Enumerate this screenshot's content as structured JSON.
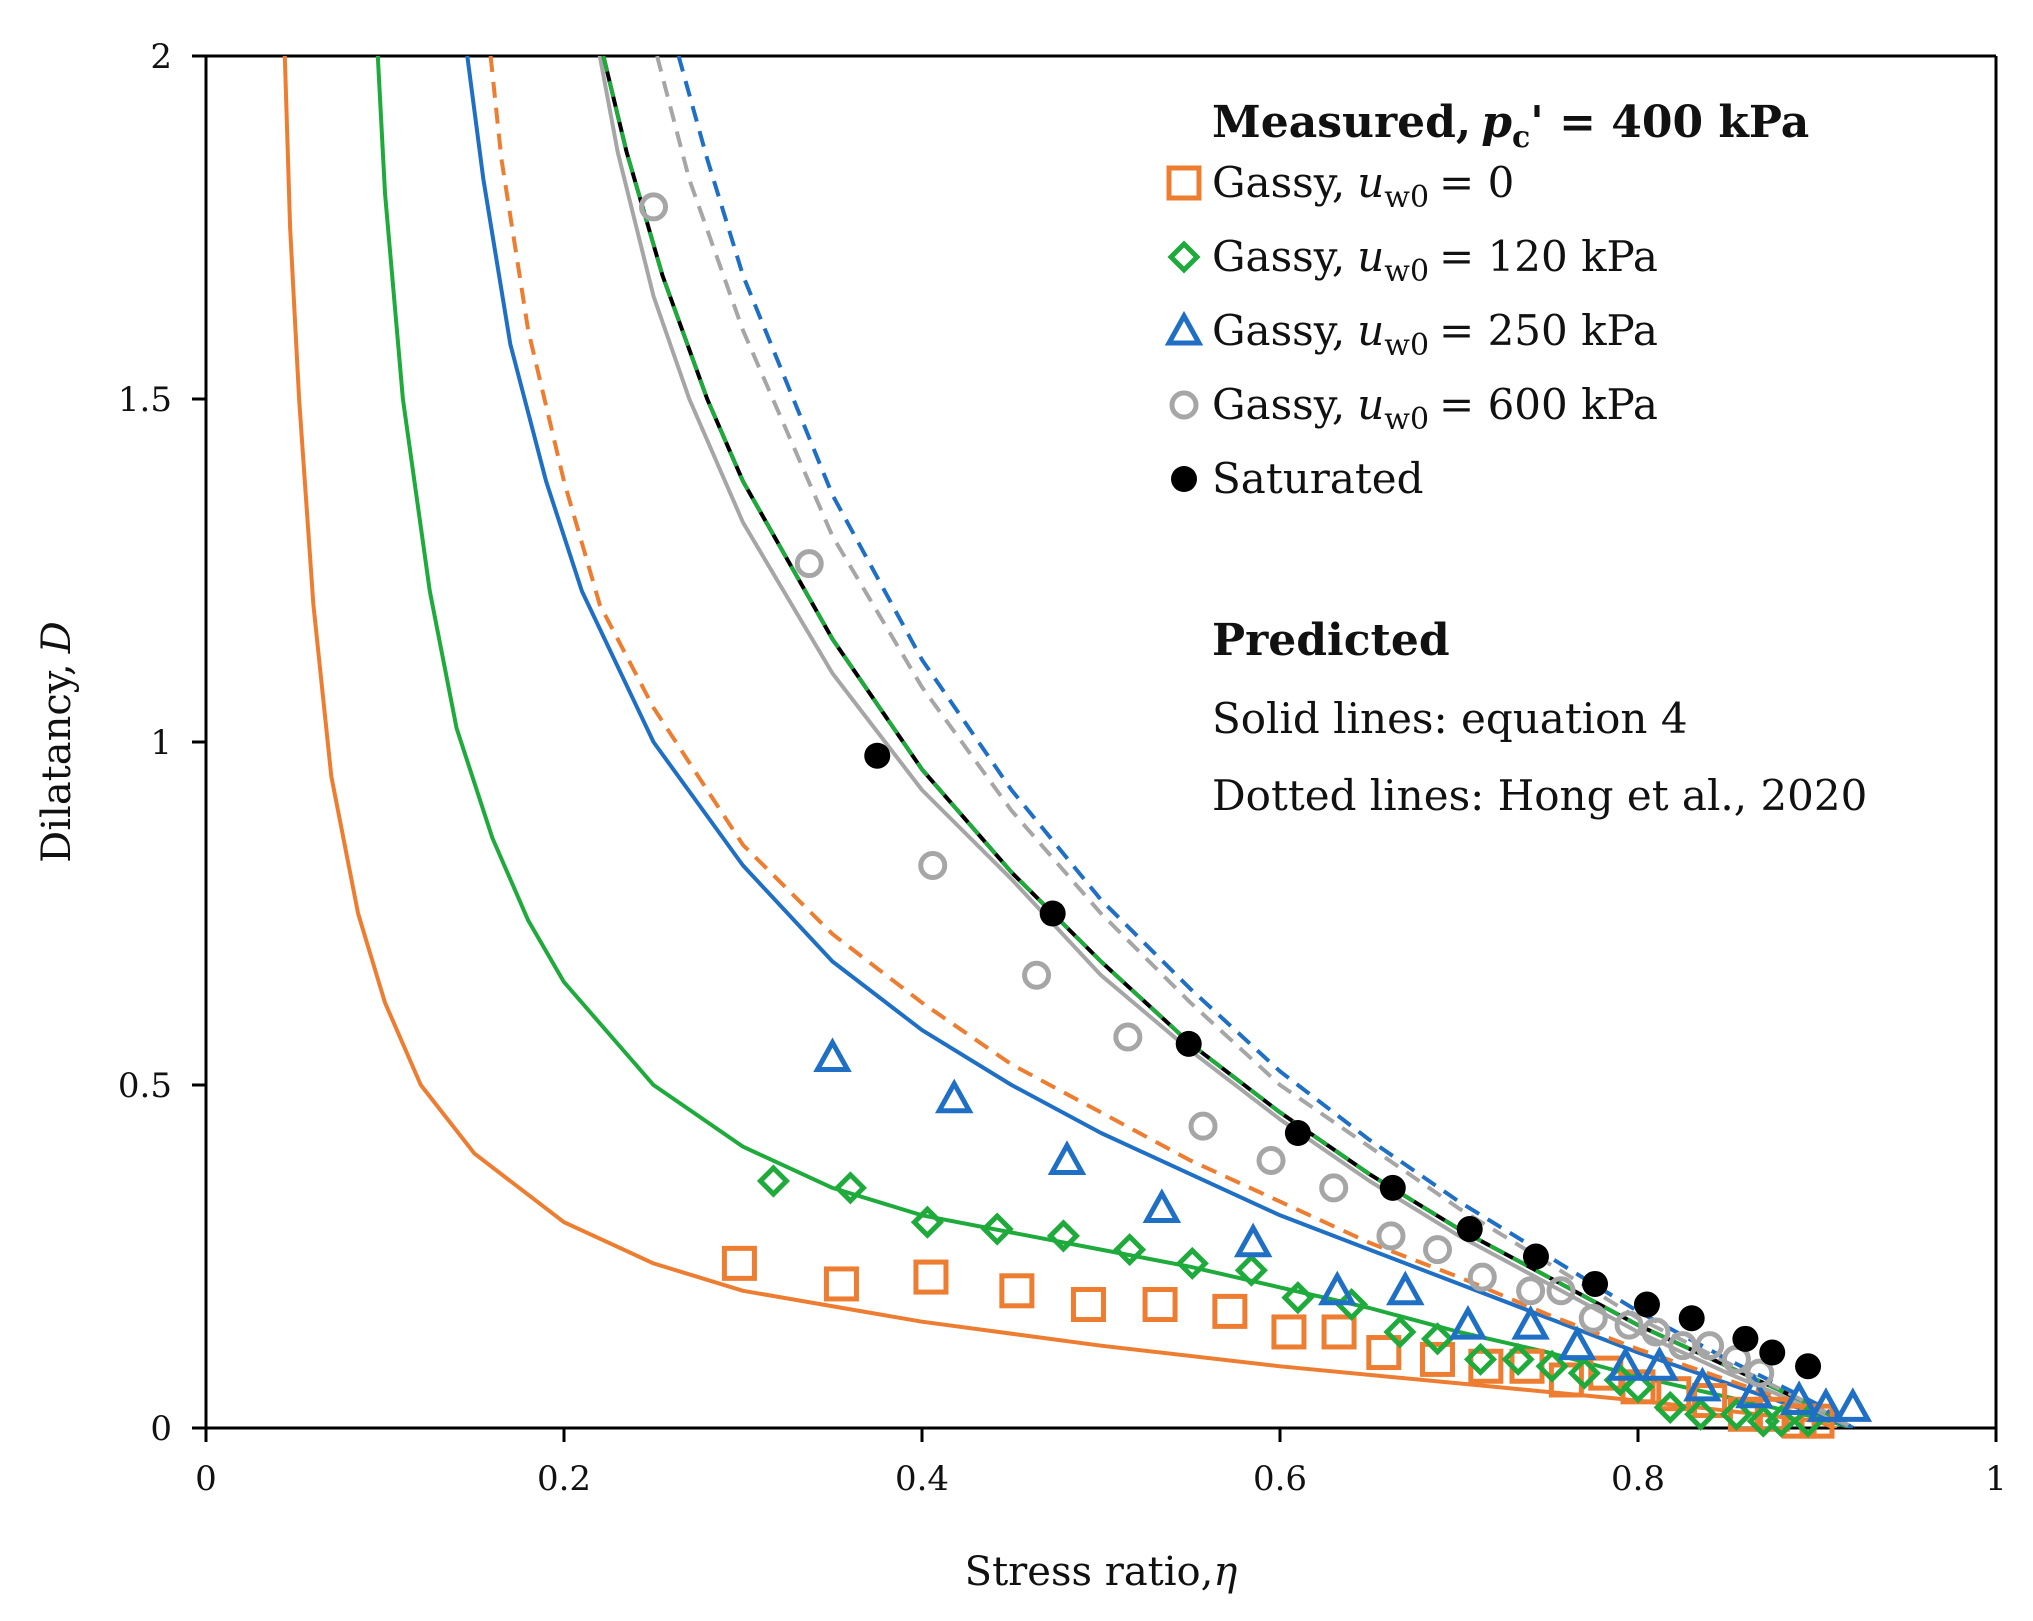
{
  "chart_data": {
    "type": "scatter",
    "title": "",
    "xlabel": "Stress ratio,",
    "xlabel_symbol": "η",
    "ylabel": "Dilatancy,",
    "ylabel_symbol": "D",
    "xlim": [
      0,
      1
    ],
    "ylim": [
      0,
      2
    ],
    "x_ticks": [
      0,
      0.2,
      0.4,
      0.6,
      0.8,
      1
    ],
    "x_tick_labels": [
      "0",
      "0.2",
      "0.4",
      "0.6",
      "0.8",
      "1"
    ],
    "y_ticks": [
      0,
      0.5,
      1,
      1.5,
      2
    ],
    "y_tick_labels": [
      "0",
      "0.5",
      "1",
      "1.5",
      "2"
    ],
    "grid": false,
    "legend": {
      "position": "top-right",
      "measured_title": "Measured,",
      "measured_symbol": "p",
      "measured_subscript": "c",
      "measured_suffix": "' = 400 kPa",
      "predicted_title": "Predicted",
      "solid_note": "Solid lines: equation 4",
      "dotted_note": "Dotted lines: Hong et al., 2020",
      "entries": [
        {
          "name": "Gassy, u_w0 = 0",
          "prefix": "Gassy,",
          "symbol": "u",
          "subscript": "w0",
          "suffix": "= 0",
          "marker": "square",
          "color": "#ED7D31"
        },
        {
          "name": "Gassy, u_w0 = 120 kPa",
          "prefix": "Gassy,",
          "symbol": "u",
          "subscript": "w0",
          "suffix": "= 120 kPa",
          "marker": "diamond",
          "color": "#1FAA3C"
        },
        {
          "name": "Gassy, u_w0 = 250 kPa",
          "prefix": "Gassy,",
          "symbol": "u",
          "subscript": "w0",
          "suffix": "= 250 kPa",
          "marker": "triangle",
          "color": "#1F6FC5"
        },
        {
          "name": "Gassy, u_w0 = 600 kPa",
          "prefix": "Gassy,",
          "symbol": "u",
          "subscript": "w0",
          "suffix": "= 600 kPa",
          "marker": "circle-open",
          "color": "#A6A6A6"
        },
        {
          "name": "Saturated",
          "prefix": "Saturated",
          "symbol": "",
          "subscript": "",
          "suffix": "",
          "marker": "circle-filled",
          "color": "#000000"
        }
      ]
    },
    "series": [
      {
        "name": "Gassy, u_w0 = 0",
        "color": "#ED7D31",
        "marker": "square",
        "x": [
          0.298,
          0.355,
          0.405,
          0.453,
          0.493,
          0.533,
          0.572,
          0.605,
          0.633,
          0.658,
          0.688,
          0.715,
          0.738,
          0.76,
          0.782,
          0.8,
          0.82,
          0.84,
          0.86,
          0.875,
          0.89,
          0.9
        ],
        "y": [
          0.24,
          0.21,
          0.22,
          0.2,
          0.18,
          0.18,
          0.17,
          0.14,
          0.14,
          0.11,
          0.1,
          0.09,
          0.09,
          0.07,
          0.08,
          0.06,
          0.05,
          0.04,
          0.02,
          0.02,
          0.01,
          0.01
        ]
      },
      {
        "name": "Gassy, u_w0 = 120 kPa",
        "color": "#1FAA3C",
        "marker": "diamond",
        "x": [
          0.317,
          0.36,
          0.403,
          0.442,
          0.479,
          0.516,
          0.551,
          0.584,
          0.61,
          0.64,
          0.667,
          0.688,
          0.712,
          0.733,
          0.752,
          0.77,
          0.79,
          0.8,
          0.818,
          0.835,
          0.855,
          0.87,
          0.88,
          0.895
        ],
        "y": [
          0.36,
          0.35,
          0.3,
          0.29,
          0.28,
          0.26,
          0.24,
          0.23,
          0.19,
          0.18,
          0.14,
          0.13,
          0.1,
          0.1,
          0.09,
          0.08,
          0.07,
          0.06,
          0.03,
          0.02,
          0.02,
          0.01,
          0.01,
          0.01
        ]
      },
      {
        "name": "Gassy, u_w0 = 250 kPa",
        "color": "#1F6FC5",
        "marker": "triangle",
        "x": [
          0.35,
          0.418,
          0.481,
          0.534,
          0.585,
          0.632,
          0.67,
          0.705,
          0.74,
          0.766,
          0.793,
          0.812,
          0.836,
          0.865,
          0.89,
          0.905,
          0.92
        ],
        "y": [
          0.54,
          0.48,
          0.39,
          0.32,
          0.27,
          0.2,
          0.2,
          0.15,
          0.15,
          0.12,
          0.09,
          0.09,
          0.06,
          0.05,
          0.04,
          0.03,
          0.03
        ]
      },
      {
        "name": "Gassy, u_w0 = 600 kPa",
        "color": "#A6A6A6",
        "marker": "circle-open",
        "x": [
          0.25,
          0.337,
          0.406,
          0.464,
          0.515,
          0.557,
          0.595,
          0.63,
          0.662,
          0.688,
          0.713,
          0.74,
          0.757,
          0.775,
          0.795,
          0.81,
          0.825,
          0.84,
          0.855,
          0.868
        ],
        "y": [
          1.78,
          1.26,
          0.82,
          0.66,
          0.57,
          0.44,
          0.39,
          0.35,
          0.28,
          0.26,
          0.22,
          0.2,
          0.2,
          0.16,
          0.15,
          0.14,
          0.12,
          0.12,
          0.1,
          0.08
        ]
      },
      {
        "name": "Saturated",
        "color": "#000000",
        "marker": "circle-filled",
        "x": [
          0.375,
          0.473,
          0.549,
          0.61,
          0.663,
          0.706,
          0.743,
          0.776,
          0.805,
          0.83,
          0.86,
          0.875,
          0.895
        ],
        "y": [
          0.98,
          0.75,
          0.56,
          0.43,
          0.35,
          0.29,
          0.25,
          0.21,
          0.18,
          0.16,
          0.13,
          0.11,
          0.09
        ]
      }
    ],
    "curves": [
      {
        "name": "Gassy, u_w0 = 0 (equation 4)",
        "style": "solid",
        "color": "#ED7D31",
        "x": [
          0.044,
          0.047,
          0.052,
          0.06,
          0.07,
          0.085,
          0.1,
          0.12,
          0.15,
          0.2,
          0.25,
          0.3,
          0.4,
          0.5,
          0.6,
          0.7,
          0.8,
          0.85,
          0.9,
          0.91
        ],
        "y": [
          2.0,
          1.75,
          1.5,
          1.2,
          0.95,
          0.75,
          0.62,
          0.5,
          0.4,
          0.3,
          0.24,
          0.2,
          0.155,
          0.12,
          0.09,
          0.065,
          0.04,
          0.025,
          0.01,
          0.0
        ]
      },
      {
        "name": "Gassy, u_w0 = 120 kPa (equation 4)",
        "style": "solid",
        "color": "#1FAA3C",
        "x": [
          0.096,
          0.1,
          0.11,
          0.125,
          0.14,
          0.16,
          0.18,
          0.2,
          0.25,
          0.3,
          0.35,
          0.4,
          0.45,
          0.5,
          0.55,
          0.6,
          0.65,
          0.7,
          0.75,
          0.8,
          0.85,
          0.9,
          0.92
        ],
        "y": [
          2.0,
          1.8,
          1.5,
          1.22,
          1.02,
          0.86,
          0.74,
          0.65,
          0.5,
          0.41,
          0.35,
          0.31,
          0.285,
          0.26,
          0.235,
          0.205,
          0.175,
          0.14,
          0.11,
          0.075,
          0.045,
          0.015,
          0.0
        ]
      },
      {
        "name": "Gassy, u_w0 = 250 kPa (equation 4)",
        "style": "solid",
        "color": "#1F6FC5",
        "x": [
          0.146,
          0.155,
          0.17,
          0.19,
          0.21,
          0.25,
          0.3,
          0.35,
          0.4,
          0.45,
          0.5,
          0.55,
          0.6,
          0.65,
          0.7,
          0.75,
          0.8,
          0.85,
          0.9,
          0.92
        ],
        "y": [
          2.0,
          1.82,
          1.58,
          1.38,
          1.22,
          1.0,
          0.82,
          0.68,
          0.58,
          0.5,
          0.43,
          0.37,
          0.31,
          0.26,
          0.21,
          0.16,
          0.11,
          0.065,
          0.02,
          0.0
        ]
      },
      {
        "name": "Gassy, u_w0 = 0 (Hong et al., 2020)",
        "style": "dashed",
        "color": "#ED7D31",
        "x": [
          0.159,
          0.165,
          0.18,
          0.2,
          0.22,
          0.25,
          0.3,
          0.35,
          0.4,
          0.45,
          0.5,
          0.55,
          0.6,
          0.65,
          0.7,
          0.75,
          0.8,
          0.85,
          0.9,
          0.92
        ],
        "y": [
          2.0,
          1.85,
          1.6,
          1.38,
          1.2,
          1.05,
          0.85,
          0.72,
          0.62,
          0.53,
          0.46,
          0.39,
          0.33,
          0.27,
          0.22,
          0.165,
          0.115,
          0.07,
          0.025,
          0.0
        ]
      },
      {
        "name": "Gassy, u_w0 = 600 kPa (equation 4)",
        "style": "solid",
        "color": "#A6A6A6",
        "x": [
          0.22,
          0.23,
          0.25,
          0.27,
          0.3,
          0.35,
          0.4,
          0.45,
          0.5,
          0.55,
          0.6,
          0.65,
          0.7,
          0.75,
          0.8,
          0.85,
          0.9,
          0.92
        ],
        "y": [
          2.0,
          1.86,
          1.65,
          1.5,
          1.32,
          1.1,
          0.93,
          0.8,
          0.66,
          0.55,
          0.45,
          0.36,
          0.28,
          0.21,
          0.14,
          0.08,
          0.025,
          0.0
        ]
      },
      {
        "name": "Saturated (equation 4)",
        "style": "solid",
        "color": "#000000",
        "x": [
          0.222,
          0.235,
          0.255,
          0.28,
          0.3,
          0.35,
          0.4,
          0.45,
          0.5,
          0.55,
          0.6,
          0.65,
          0.7,
          0.75,
          0.8,
          0.85,
          0.9,
          0.92
        ],
        "y": [
          2.0,
          1.86,
          1.68,
          1.5,
          1.38,
          1.15,
          0.96,
          0.81,
          0.68,
          0.56,
          0.46,
          0.37,
          0.29,
          0.22,
          0.15,
          0.09,
          0.03,
          0.0
        ]
      },
      {
        "name": "Gassy, u_w0 = 120 kPa (Hong et al., 2020)",
        "style": "dashed",
        "color": "#1FAA3C",
        "x": [
          0.222,
          0.235,
          0.255,
          0.28,
          0.3,
          0.35,
          0.4,
          0.45,
          0.5,
          0.55,
          0.6,
          0.65,
          0.7,
          0.75,
          0.8,
          0.85,
          0.9,
          0.92
        ],
        "y": [
          2.0,
          1.86,
          1.68,
          1.5,
          1.38,
          1.15,
          0.96,
          0.81,
          0.68,
          0.56,
          0.46,
          0.37,
          0.29,
          0.22,
          0.15,
          0.09,
          0.03,
          0.0
        ]
      },
      {
        "name": "Gassy, u_w0 = 600 kPa (Hong et al., 2020)",
        "style": "dashed",
        "color": "#A6A6A6",
        "x": [
          0.252,
          0.27,
          0.3,
          0.35,
          0.4,
          0.45,
          0.5,
          0.55,
          0.6,
          0.65,
          0.7,
          0.75,
          0.8,
          0.85,
          0.9,
          0.92
        ],
        "y": [
          2.0,
          1.82,
          1.6,
          1.3,
          1.08,
          0.9,
          0.75,
          0.62,
          0.5,
          0.41,
          0.32,
          0.24,
          0.16,
          0.095,
          0.03,
          0.0
        ]
      },
      {
        "name": "Gassy, u_w0 = 250 kPa (Hong et al., 2020)",
        "style": "dashed",
        "color": "#1F6FC5",
        "x": [
          0.264,
          0.28,
          0.3,
          0.35,
          0.4,
          0.45,
          0.5,
          0.55,
          0.6,
          0.65,
          0.7,
          0.75,
          0.8,
          0.85,
          0.9,
          0.92
        ],
        "y": [
          2.0,
          1.85,
          1.68,
          1.36,
          1.12,
          0.93,
          0.77,
          0.64,
          0.52,
          0.42,
          0.33,
          0.25,
          0.17,
          0.1,
          0.035,
          0.0
        ]
      }
    ]
  }
}
